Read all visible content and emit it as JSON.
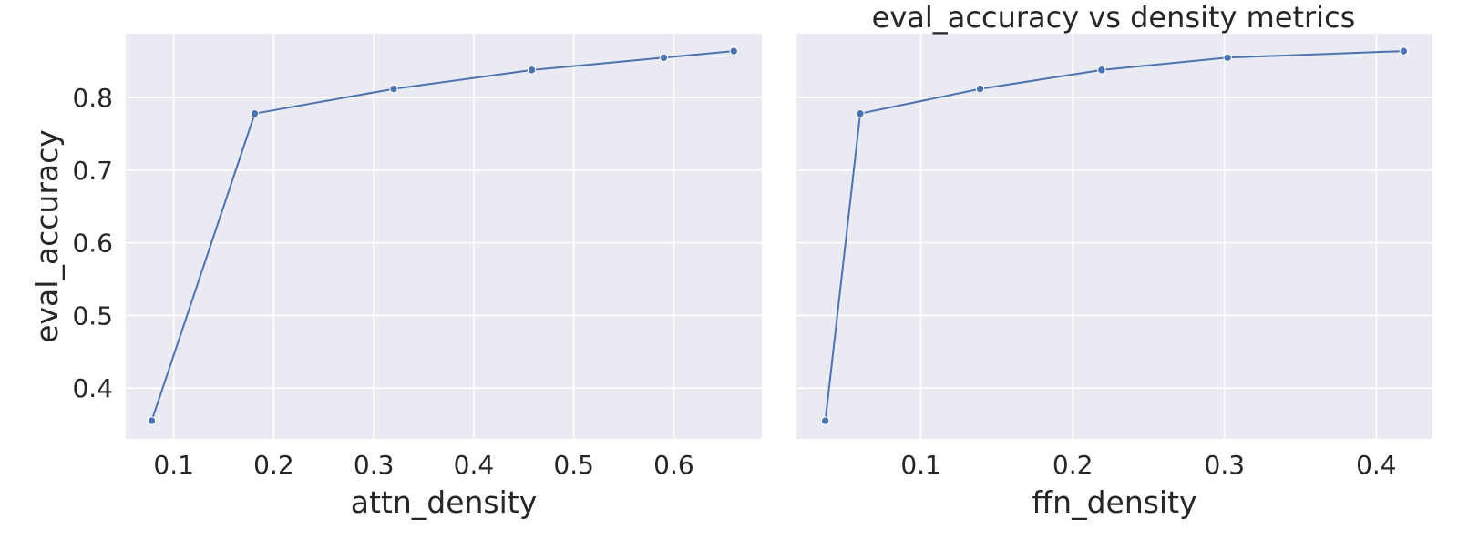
{
  "figure": {
    "title": "eval_accuracy vs density metrics",
    "background": "#ffffff",
    "plot_background": "#eaeaf2",
    "grid_color": "#ffffff",
    "line_color": "#4c72b0",
    "text_color": "#262626"
  },
  "chart_data": [
    {
      "type": "line",
      "xlabel": "attn_density",
      "ylabel": "eval_accuracy",
      "xlim": [
        0.052,
        0.688
      ],
      "ylim": [
        0.33,
        0.888
      ],
      "xticks": [
        0.1,
        0.2,
        0.3,
        0.4,
        0.5,
        0.6
      ],
      "xtick_labels": [
        "0.1",
        "0.2",
        "0.3",
        "0.4",
        "0.5",
        "0.6"
      ],
      "yticks": [
        0.4,
        0.5,
        0.6,
        0.7,
        0.8
      ],
      "ytick_labels": [
        "0.4",
        "0.5",
        "0.6",
        "0.7",
        "0.8"
      ],
      "grid": true,
      "marker": "circle",
      "series": [
        {
          "x": [
            0.078,
            0.181,
            0.32,
            0.458,
            0.59,
            0.66
          ],
          "y": [
            0.355,
            0.778,
            0.812,
            0.838,
            0.855,
            0.864
          ]
        }
      ]
    },
    {
      "type": "line",
      "xlabel": "ffn_density",
      "ylabel": "",
      "xlim": [
        0.018,
        0.437
      ],
      "ylim": [
        0.33,
        0.888
      ],
      "xticks": [
        0.1,
        0.2,
        0.3,
        0.4
      ],
      "xtick_labels": [
        "0.1",
        "0.2",
        "0.3",
        "0.4"
      ],
      "yticks": [
        0.4,
        0.5,
        0.6,
        0.7,
        0.8
      ],
      "ytick_labels": [],
      "grid": true,
      "marker": "circle",
      "series": [
        {
          "x": [
            0.037,
            0.06,
            0.139,
            0.219,
            0.302,
            0.418
          ],
          "y": [
            0.355,
            0.778,
            0.812,
            0.838,
            0.855,
            0.864
          ]
        }
      ]
    }
  ]
}
